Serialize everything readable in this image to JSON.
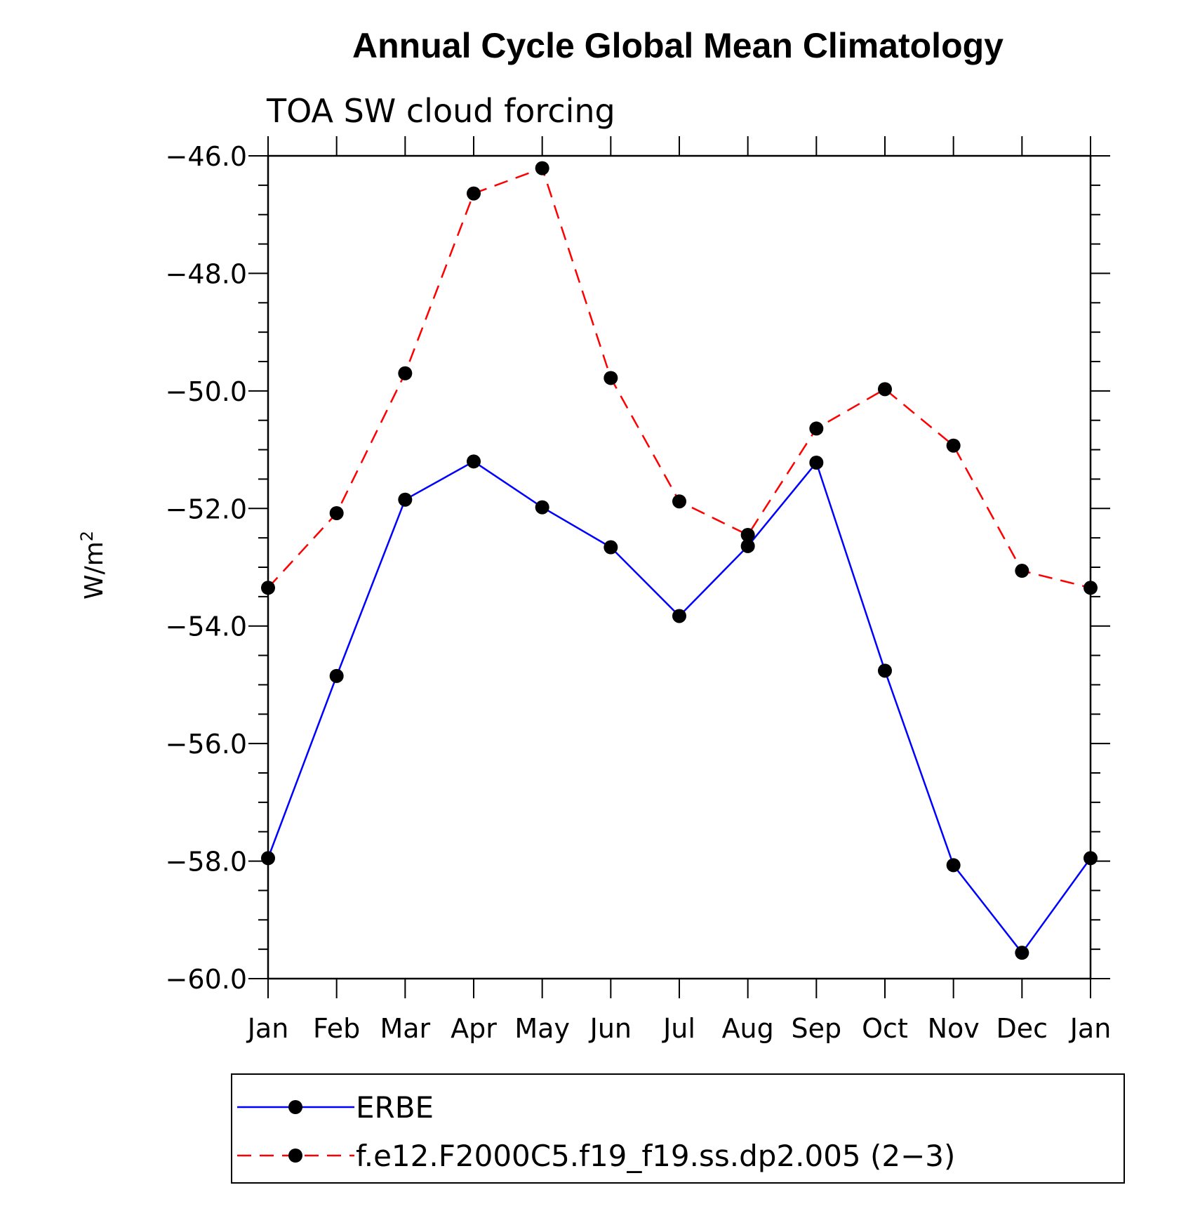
{
  "chart_data": {
    "type": "line",
    "title": "Annual Cycle Global Mean Climatology",
    "subtitle": "TOA SW cloud forcing",
    "ylabel": "W/m",
    "ylabel_superscript": "2",
    "xlabel": "",
    "categories": [
      "Jan",
      "Feb",
      "Mar",
      "Apr",
      "May",
      "Jun",
      "Jul",
      "Aug",
      "Sep",
      "Oct",
      "Nov",
      "Dec",
      "Jan"
    ],
    "ylim": [
      -60.0,
      -46.0
    ],
    "yticks": [
      "-46.0",
      "-48.0",
      "-50.0",
      "-52.0",
      "-54.0",
      "-56.0",
      "-58.0",
      "-60.0"
    ],
    "grid": false,
    "legend_position": "bottom",
    "series": [
      {
        "name": "ERBE",
        "color": "#0000ff",
        "style": "solid",
        "marker": "filled-circle",
        "values": [
          -57.95,
          -54.85,
          -51.85,
          -51.2,
          -51.98,
          -52.66,
          -53.83,
          -52.64,
          -51.22,
          -54.76,
          -58.07,
          -59.56,
          -57.95
        ]
      },
      {
        "name": "f.e12.F2000C5.f19_f19.ss.dp2.005 (2−3)",
        "color": "#ff0000",
        "style": "dashed",
        "marker": "filled-circle",
        "values": [
          -53.35,
          -52.08,
          -49.7,
          -46.64,
          -46.21,
          -49.78,
          -51.88,
          -52.45,
          -50.64,
          -49.97,
          -50.93,
          -53.06,
          -53.35
        ]
      }
    ]
  }
}
